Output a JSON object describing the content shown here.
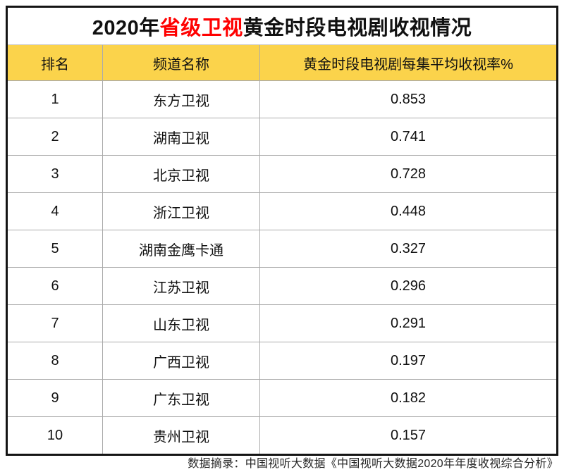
{
  "title": {
    "prefix": "2020年",
    "highlight": "省级卫视",
    "suffix": "黄金时段电视剧收视情况"
  },
  "table": {
    "columns": {
      "rank": "排名",
      "channel": "频道名称",
      "rating": "黄金时段电视剧每集平均收视率%"
    },
    "rows": [
      {
        "rank": "1",
        "channel": "东方卫视",
        "rating": "0.853"
      },
      {
        "rank": "2",
        "channel": "湖南卫视",
        "rating": "0.741"
      },
      {
        "rank": "3",
        "channel": "北京卫视",
        "rating": "0.728"
      },
      {
        "rank": "4",
        "channel": "浙江卫视",
        "rating": "0.448"
      },
      {
        "rank": "5",
        "channel": "湖南金鹰卡通",
        "rating": "0.327"
      },
      {
        "rank": "6",
        "channel": "江苏卫视",
        "rating": "0.296"
      },
      {
        "rank": "7",
        "channel": "山东卫视",
        "rating": "0.291"
      },
      {
        "rank": "8",
        "channel": "广西卫视",
        "rating": "0.197"
      },
      {
        "rank": "9",
        "channel": "广东卫视",
        "rating": "0.182"
      },
      {
        "rank": "10",
        "channel": "贵州卫视",
        "rating": "0.157"
      }
    ]
  },
  "footer": "数据摘录：中国视听大数据《中国视听大数据2020年年度收视综合分析》",
  "colors": {
    "header_bg": "#FBD34B",
    "title_highlight": "#FF0000",
    "border": "#141414",
    "grid": "#ABABAB",
    "footer_text": "#262626"
  },
  "chart_data": {
    "type": "table",
    "title": "2020年省级卫视黄金时段电视剧收视情况",
    "columns": [
      "排名",
      "频道名称",
      "黄金时段电视剧每集平均收视率%"
    ],
    "rows": [
      [
        1,
        "东方卫视",
        0.853
      ],
      [
        2,
        "湖南卫视",
        0.741
      ],
      [
        3,
        "北京卫视",
        0.728
      ],
      [
        4,
        "浙江卫视",
        0.448
      ],
      [
        5,
        "湖南金鹰卡通",
        0.327
      ],
      [
        6,
        "江苏卫视",
        0.296
      ],
      [
        7,
        "山东卫视",
        0.291
      ],
      [
        8,
        "广西卫视",
        0.197
      ],
      [
        9,
        "广东卫视",
        0.182
      ],
      [
        10,
        "贵州卫视",
        0.157
      ]
    ],
    "source_note": "数据摘录：中国视听大数据《中国视听大数据2020年年度收视综合分析》"
  }
}
